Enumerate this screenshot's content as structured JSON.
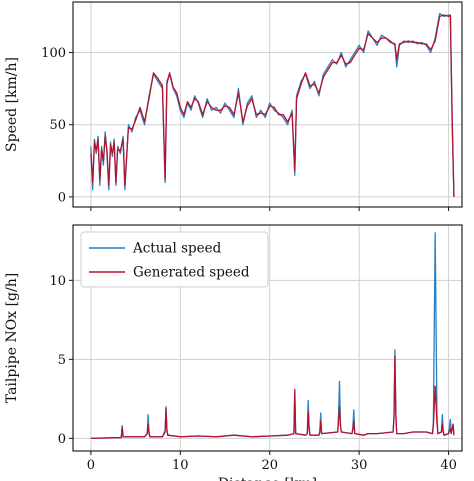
{
  "colors": {
    "actual": "#2a7fc0",
    "generated": "#b5122e",
    "grid": "#cfcfcf",
    "axis": "#111111"
  },
  "chart_data": [
    {
      "type": "line",
      "title": "",
      "xlabel": "",
      "ylabel": "Speed [km/h]",
      "xlim": [
        -2,
        41.5
      ],
      "ylim": [
        -7,
        135
      ],
      "xticks": [
        0,
        10,
        20,
        30,
        40
      ],
      "yticks": [
        0,
        50,
        100
      ],
      "grid": true,
      "legend": "none",
      "series": [
        {
          "name": "Actual speed",
          "x": [
            0,
            0.2,
            0.4,
            0.6,
            0.8,
            1.0,
            1.2,
            1.4,
            1.6,
            1.8,
            2.0,
            2.2,
            2.4,
            2.6,
            2.8,
            3.0,
            3.3,
            3.6,
            3.8,
            4.2,
            4.6,
            5.0,
            5.5,
            6.0,
            6.5,
            7.0,
            7.5,
            8.0,
            8.3,
            8.5,
            8.8,
            9.2,
            9.6,
            10.0,
            10.4,
            10.8,
            11.2,
            11.6,
            12.0,
            12.5,
            13.0,
            13.5,
            14.0,
            14.5,
            15.0,
            15.5,
            16.0,
            16.5,
            17.0,
            17.5,
            18.0,
            18.5,
            19.0,
            19.5,
            20.0,
            20.5,
            21.0,
            21.5,
            22.0,
            22.5,
            22.8,
            23.0,
            23.5,
            24.0,
            24.5,
            25.0,
            25.5,
            26.0,
            26.5,
            27.0,
            27.5,
            28.0,
            28.5,
            29.0,
            29.5,
            30.0,
            30.5,
            31.0,
            31.5,
            32.0,
            32.5,
            33.0,
            33.5,
            34.0,
            34.2,
            34.5,
            35.0,
            35.5,
            36.0,
            36.5,
            37.0,
            37.5,
            38.0,
            38.5,
            39.0,
            39.5,
            40.0,
            40.2,
            40.4,
            40.6
          ],
          "y": [
            35,
            5,
            40,
            30,
            42,
            8,
            35,
            22,
            45,
            30,
            5,
            38,
            28,
            40,
            8,
            35,
            30,
            42,
            5,
            50,
            45,
            55,
            60,
            50,
            70,
            85,
            80,
            75,
            10,
            80,
            85,
            75,
            70,
            60,
            55,
            65,
            60,
            70,
            65,
            55,
            68,
            60,
            62,
            58,
            65,
            60,
            55,
            75,
            50,
            65,
            70,
            55,
            60,
            55,
            65,
            60,
            58,
            55,
            50,
            60,
            15,
            70,
            80,
            85,
            75,
            80,
            70,
            85,
            90,
            95,
            92,
            100,
            90,
            95,
            100,
            105,
            100,
            115,
            110,
            105,
            112,
            110,
            108,
            105,
            90,
            105,
            108,
            107,
            108,
            106,
            107,
            105,
            100,
            110,
            127,
            125,
            126,
            125,
            50,
            0
          ]
        },
        {
          "name": "Generated speed",
          "x": [
            0,
            0.2,
            0.4,
            0.6,
            0.8,
            1.0,
            1.2,
            1.4,
            1.6,
            1.8,
            2.0,
            2.2,
            2.4,
            2.6,
            2.8,
            3.0,
            3.3,
            3.6,
            3.8,
            4.2,
            4.6,
            5.0,
            5.5,
            6.0,
            6.5,
            7.0,
            7.5,
            8.0,
            8.3,
            8.5,
            8.8,
            9.2,
            9.6,
            10.0,
            10.4,
            10.8,
            11.2,
            11.6,
            12.0,
            12.5,
            13.0,
            13.5,
            14.0,
            14.5,
            15.0,
            15.5,
            16.0,
            16.5,
            17.0,
            17.5,
            18.0,
            18.5,
            19.0,
            19.5,
            20.0,
            20.5,
            21.0,
            21.5,
            22.0,
            22.5,
            22.8,
            23.0,
            23.5,
            24.0,
            24.5,
            25.0,
            25.5,
            26.0,
            26.5,
            27.0,
            27.5,
            28.0,
            28.5,
            29.0,
            29.5,
            30.0,
            30.5,
            31.0,
            31.5,
            32.0,
            32.5,
            33.0,
            33.5,
            34.0,
            34.2,
            34.5,
            35.0,
            35.5,
            36.0,
            36.5,
            37.0,
            37.5,
            38.0,
            38.5,
            39.0,
            39.5,
            40.0,
            40.2,
            40.4,
            40.6
          ],
          "y": [
            30,
            10,
            38,
            32,
            40,
            12,
            33,
            25,
            42,
            32,
            8,
            36,
            30,
            38,
            10,
            33,
            32,
            40,
            8,
            48,
            47,
            53,
            62,
            52,
            68,
            86,
            82,
            77,
            12,
            78,
            86,
            76,
            72,
            62,
            57,
            66,
            62,
            68,
            66,
            57,
            66,
            62,
            60,
            60,
            63,
            62,
            57,
            72,
            52,
            63,
            68,
            57,
            58,
            57,
            63,
            62,
            57,
            57,
            52,
            58,
            18,
            68,
            78,
            86,
            77,
            78,
            72,
            83,
            88,
            93,
            93,
            98,
            92,
            93,
            98,
            103,
            102,
            113,
            110,
            107,
            110,
            110,
            107,
            106,
            95,
            106,
            107,
            108,
            107,
            107,
            106,
            106,
            102,
            108,
            125,
            126,
            125,
            126,
            55,
            0
          ]
        }
      ]
    },
    {
      "type": "line",
      "title": "",
      "xlabel": "Distance [km]",
      "ylabel": "Tailpipe NOx [g/h]",
      "xlim": [
        -2,
        41.5
      ],
      "ylim": [
        -0.8,
        13.5
      ],
      "xticks": [
        0,
        10,
        20,
        30,
        40
      ],
      "yticks": [
        0,
        5,
        10
      ],
      "grid": true,
      "legend": "top-left",
      "series": [
        {
          "name": "Actual speed",
          "x": [
            0,
            3.4,
            3.5,
            3.6,
            6.0,
            6.3,
            6.4,
            6.5,
            6.6,
            8.0,
            8.3,
            8.4,
            8.5,
            8.6,
            10,
            12,
            14,
            16,
            18,
            20,
            22,
            22.7,
            22.8,
            22.9,
            24,
            24.2,
            24.3,
            24.4,
            24.5,
            25.5,
            25.6,
            25.7,
            25.8,
            27.6,
            27.7,
            27.8,
            27.9,
            28.0,
            29.2,
            29.3,
            29.4,
            29.5,
            30.5,
            31,
            32,
            33.8,
            33.9,
            34.0,
            34.1,
            34.2,
            35,
            36,
            37.5,
            38.2,
            38.3,
            38.5,
            38.7,
            38.8,
            39.2,
            39.3,
            39.4,
            39.5,
            40.0,
            40.2,
            40.3,
            40.5,
            40.6
          ],
          "y": [
            0,
            0.05,
            0.8,
            0.1,
            0.1,
            0.3,
            1.5,
            0.4,
            0.1,
            0.1,
            0.5,
            2.0,
            0.6,
            0.2,
            0.1,
            0.15,
            0.1,
            0.2,
            0.1,
            0.15,
            0.2,
            0.3,
            2.9,
            0.3,
            0.2,
            0.3,
            2.4,
            0.8,
            0.2,
            0.2,
            0.4,
            1.6,
            0.3,
            0.4,
            1.5,
            3.6,
            1.0,
            0.4,
            0.3,
            0.7,
            1.8,
            0.3,
            0.2,
            0.3,
            0.3,
            0.4,
            1.4,
            5.6,
            1.5,
            0.3,
            0.3,
            0.4,
            0.4,
            0.3,
            1.0,
            13.0,
            1.5,
            0.3,
            0.4,
            1.5,
            0.5,
            0.2,
            0.3,
            1.2,
            0.4,
            0.8,
            0.2
          ]
        },
        {
          "name": "Generated speed",
          "x": [
            0,
            3.4,
            3.5,
            3.6,
            6.0,
            6.3,
            6.4,
            6.5,
            6.6,
            8.0,
            8.3,
            8.4,
            8.5,
            8.6,
            10,
            12,
            14,
            16,
            18,
            20,
            22,
            22.7,
            22.8,
            22.9,
            24,
            24.2,
            24.3,
            24.4,
            24.5,
            25.5,
            25.6,
            25.7,
            25.8,
            27.6,
            27.7,
            27.8,
            27.9,
            28.0,
            29.2,
            29.3,
            29.4,
            29.5,
            30.5,
            31,
            32,
            33.8,
            33.9,
            34.0,
            34.1,
            34.2,
            35,
            36,
            37.5,
            38.2,
            38.3,
            38.5,
            38.7,
            38.8,
            39.2,
            39.3,
            39.4,
            39.5,
            40.0,
            40.2,
            40.3,
            40.5,
            40.6
          ],
          "y": [
            0,
            0.05,
            0.7,
            0.1,
            0.1,
            0.3,
            0.9,
            0.3,
            0.1,
            0.1,
            0.4,
            1.9,
            0.5,
            0.2,
            0.1,
            0.15,
            0.1,
            0.2,
            0.1,
            0.15,
            0.2,
            0.3,
            3.1,
            0.3,
            0.2,
            0.3,
            1.7,
            0.6,
            0.2,
            0.2,
            0.4,
            1.1,
            0.3,
            0.4,
            1.2,
            2.0,
            0.8,
            0.4,
            0.3,
            0.6,
            1.1,
            0.3,
            0.2,
            0.3,
            0.3,
            0.4,
            1.5,
            5.2,
            1.5,
            0.3,
            0.3,
            0.4,
            0.4,
            0.3,
            0.8,
            3.3,
            1.0,
            0.3,
            0.4,
            0.9,
            0.4,
            0.2,
            0.3,
            0.6,
            0.3,
            0.9,
            0.2
          ]
        }
      ]
    }
  ]
}
